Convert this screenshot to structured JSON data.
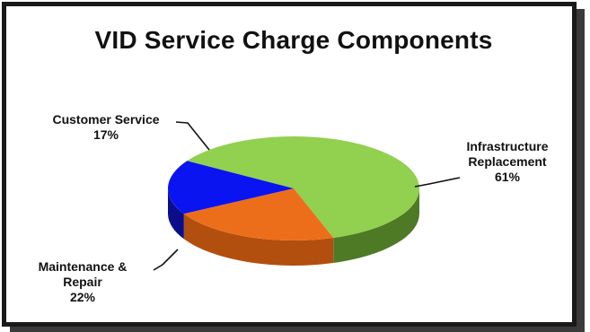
{
  "chart_data": {
    "type": "pie",
    "title": "VID Service Charge Components",
    "slices": [
      {
        "name": "Infrastructure Replacement",
        "label_lines": [
          "Infrastructure",
          "Replacement"
        ],
        "value_text": "61%",
        "value": 61,
        "color": "#92d050",
        "side_color": "#4e7a25"
      },
      {
        "name": "Maintenance & Repair",
        "label_lines": [
          "Maintenance &",
          "Repair"
        ],
        "value_text": "22%",
        "value": 22,
        "color": "#ed6e1a",
        "side_color": "#b24f0f"
      },
      {
        "name": "Customer Service",
        "label_lines": [
          "Customer Service"
        ],
        "value_text": "17%",
        "value": 17,
        "color": "#0a14f0",
        "side_color": "#0a0e8a"
      }
    ]
  }
}
